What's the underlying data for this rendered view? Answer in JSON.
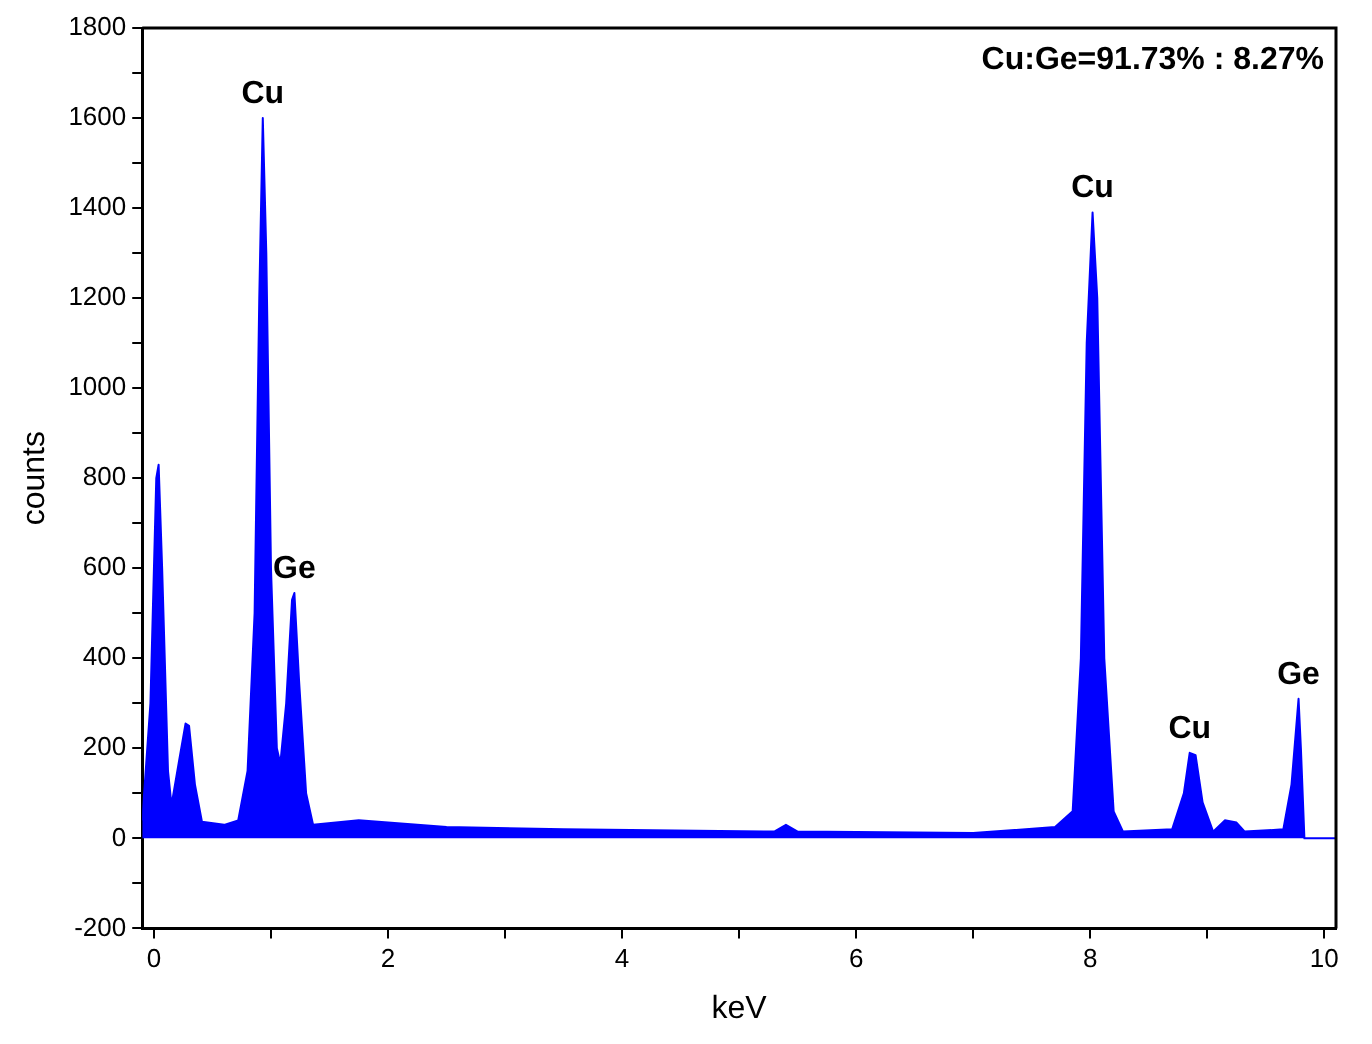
{
  "chart_data": {
    "type": "area",
    "xlabel": "keV",
    "ylabel": "counts",
    "x": [
      -0.1,
      -0.03,
      0.02,
      0.04,
      0.07,
      0.12,
      0.15,
      0.2,
      0.27,
      0.3,
      0.35,
      0.41,
      0.6,
      0.72,
      0.8,
      0.86,
      0.9,
      0.93,
      0.96,
      1.0,
      1.05,
      1.08,
      1.13,
      1.18,
      1.2,
      1.24,
      1.3,
      1.36,
      1.75,
      2.5,
      3.5,
      5.3,
      5.4,
      5.5,
      7.0,
      7.7,
      7.85,
      7.92,
      7.97,
      8.02,
      8.06,
      8.12,
      8.2,
      8.28,
      8.7,
      8.8,
      8.85,
      8.9,
      8.96,
      9.05,
      9.15,
      9.25,
      9.32,
      9.65,
      9.72,
      9.78,
      9.8,
      9.83,
      10.1
    ],
    "series": [
      {
        "color": "#0000ff",
        "values": [
          40,
          300,
          800,
          830,
          600,
          150,
          74,
          150,
          255,
          250,
          120,
          37,
          30,
          40,
          150,
          500,
          1200,
          1600,
          1300,
          600,
          200,
          166,
          300,
          530,
          545,
          350,
          100,
          30,
          40,
          25,
          20,
          15,
          30,
          15,
          12,
          25,
          60,
          400,
          1100,
          1390,
          1200,
          400,
          60,
          15,
          20,
          100,
          190,
          185,
          80,
          15,
          40,
          35,
          15,
          20,
          120,
          310,
          200,
          0,
          0
        ]
      }
    ],
    "xlim": [
      -0.1,
      10.1
    ],
    "xticks": [
      0,
      {
        "value": 1,
        "label": null
      },
      2,
      {
        "value": 3,
        "label": null
      },
      4,
      {
        "value": 5,
        "label": null
      },
      6,
      {
        "value": 7,
        "label": null
      },
      8,
      {
        "value": 9,
        "label": null
      },
      10
    ],
    "ylim": [
      -200,
      1800
    ],
    "yticks": [
      -200,
      {
        "value": -100,
        "label": null
      },
      0,
      {
        "value": 100,
        "label": null
      },
      200,
      {
        "value": 300,
        "label": null
      },
      400,
      {
        "value": 500,
        "label": null
      },
      600,
      {
        "value": 700,
        "label": null
      },
      800,
      {
        "value": 900,
        "label": null
      },
      1000,
      {
        "value": 1100,
        "label": null
      },
      1200,
      {
        "value": 1300,
        "label": null
      },
      1400,
      {
        "value": 1500,
        "label": null
      },
      1600,
      {
        "value": 1700,
        "label": null
      },
      1800
    ],
    "grid": false,
    "legend": false,
    "marker": "none",
    "annotations": [
      "Cu:Ge=91.73% : 8.27%",
      {
        "text": "Cu",
        "x": 0.93,
        "y": 1600
      },
      {
        "text": "Ge",
        "x": 1.2,
        "y": 545
      },
      {
        "text": "Cu",
        "x": 8.02,
        "y": 1390
      },
      {
        "text": "Cu",
        "x": 8.85,
        "y": 190
      },
      {
        "text": "Ge",
        "x": 9.78,
        "y": 310
      }
    ]
  }
}
